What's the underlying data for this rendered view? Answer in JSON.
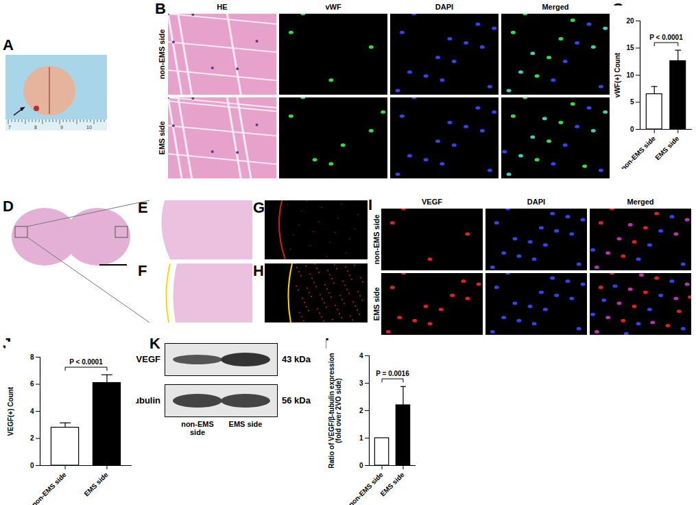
{
  "figure": {
    "panel_letters": [
      "A",
      "B",
      "C",
      "D",
      "E",
      "F",
      "G",
      "H",
      "I",
      "J",
      "K",
      "L"
    ],
    "A": {
      "ruler_labels": [
        "7",
        "8",
        "9",
        "10"
      ]
    },
    "B": {
      "columns": [
        "HE",
        "vWF",
        "DAPI",
        "Merged"
      ],
      "rows": [
        "non-EMS side",
        "EMS side"
      ]
    },
    "I": {
      "columns": [
        "VEGF",
        "DAPI",
        "Merged"
      ],
      "rows": [
        "non-EMS side",
        "EMS side"
      ]
    },
    "K": {
      "bands": [
        {
          "name": "VEGF",
          "size": "43 kDa"
        },
        {
          "name": "β-tubulin",
          "size": "56 kDa"
        }
      ],
      "lanes": [
        "non-EMS side",
        "EMS side"
      ]
    }
  },
  "chart_data": [
    {
      "type": "bar",
      "ylabel": "vWF(+) Count",
      "categories": [
        "non-EMS side",
        "EMS side"
      ],
      "values": [
        6.5,
        12.6
      ],
      "errors": [
        1.4,
        2.0
      ],
      "colors": [
        "#ffffff",
        "#000000"
      ],
      "ylim": [
        0,
        20
      ],
      "yticks": [
        0,
        5,
        10,
        15,
        20
      ],
      "annotation": "P < 0.0001"
    },
    {
      "type": "bar",
      "ylabel": "VEGF(+) Count",
      "categories": [
        "non-EMS side",
        "EMS side"
      ],
      "values": [
        2.8,
        6.1
      ],
      "errors": [
        0.35,
        0.6
      ],
      "colors": [
        "#ffffff",
        "#000000"
      ],
      "ylim": [
        0,
        8
      ],
      "yticks": [
        0,
        2,
        4,
        6,
        8
      ],
      "annotation": "P < 0.0001"
    },
    {
      "type": "bar",
      "ylabel": "Ratio of VEGF/β-tubulin expression\n(fold over 2VO side)",
      "categories": [
        "non-EMS side",
        "EMS side"
      ],
      "values": [
        1.0,
        2.2
      ],
      "errors": [
        0,
        0.68
      ],
      "colors": [
        "#ffffff",
        "#000000"
      ],
      "ylim": [
        0,
        4
      ],
      "yticks": [
        0,
        1,
        2,
        3,
        4
      ],
      "annotation": "P = 0.0016"
    }
  ]
}
